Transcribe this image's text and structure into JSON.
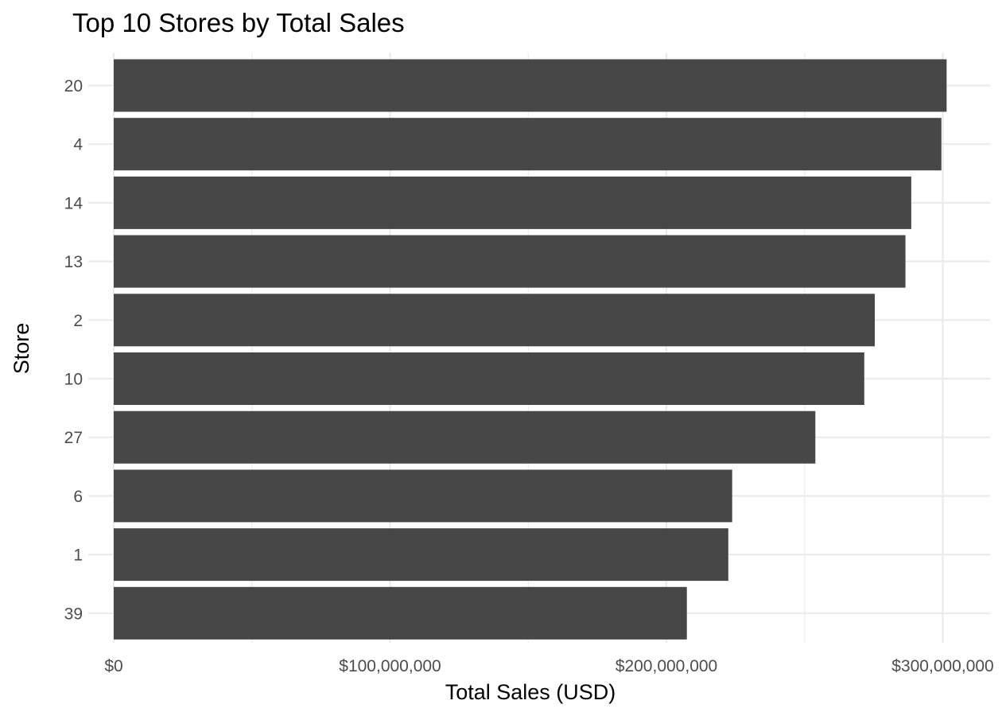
{
  "chart_data": {
    "type": "bar",
    "orientation": "horizontal",
    "title": "Top 10 Stores by Total Sales",
    "xlabel": "Total Sales (USD)",
    "ylabel": "Store",
    "categories": [
      "20",
      "4",
      "14",
      "13",
      "2",
      "10",
      "27",
      "6",
      "1",
      "39"
    ],
    "values": [
      301400000,
      299500000,
      288600000,
      286500000,
      275400000,
      271600000,
      253900000,
      223800000,
      222400000,
      207400000
    ],
    "xlim": [
      0,
      307000000
    ],
    "xticks": [
      0,
      100000000,
      200000000,
      300000000
    ],
    "xtick_labels": [
      "$0",
      "$100,000,000",
      "$200,000,000",
      "$300,000,000"
    ],
    "bar_color": "#474747",
    "grid": true,
    "legend": "none"
  }
}
